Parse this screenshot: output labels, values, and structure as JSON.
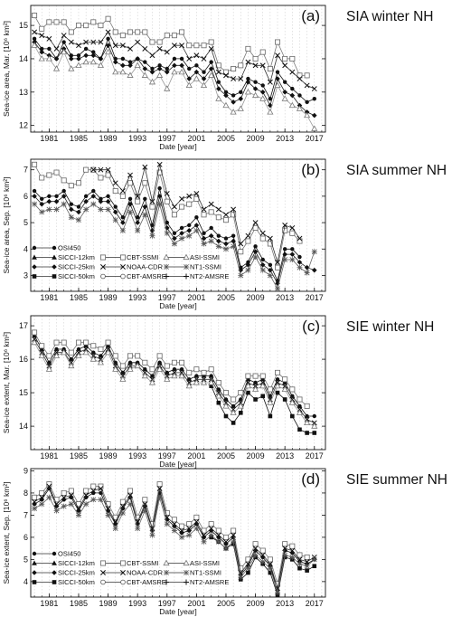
{
  "years": [
    1979,
    1980,
    1981,
    1982,
    1983,
    1984,
    1985,
    1986,
    1987,
    1988,
    1989,
    1990,
    1991,
    1992,
    1993,
    1994,
    1995,
    1996,
    1997,
    1998,
    1999,
    2000,
    2001,
    2002,
    2003,
    2004,
    2005,
    2006,
    2007,
    2008,
    2009,
    2010,
    2011,
    2012,
    2013,
    2014,
    2015,
    2016,
    2017,
    2018
  ],
  "x_ticks": [
    1981,
    1985,
    1989,
    1993,
    1997,
    2001,
    2005,
    2009,
    2013,
    2017
  ],
  "xlabel": "Date [year]",
  "legend_entries": [
    "OSI450",
    "SICCI-12km",
    "SICCI-25km",
    "SICCI-50km",
    "CBT-SSMI",
    "NOAA-CDR",
    "CBT-AMSRE",
    "ASI-SSMI",
    "NT1-SSMI",
    "NT2-AMSRE"
  ],
  "chart_data": [
    {
      "type": "line",
      "panel_label": "(a)",
      "side_title": "SIA winter NH",
      "ylabel": "Sea-ice area, Mar. [10⁶ km²]",
      "ylim": [
        11.8,
        15.6
      ],
      "yticks": [
        12,
        13,
        14,
        15
      ],
      "legend": false,
      "series": [
        {
          "name": "OSI450",
          "values": [
            14.6,
            14.3,
            14.3,
            14.0,
            14.5,
            14.1,
            14.1,
            14.3,
            14.2,
            14.0,
            14.6,
            14.0,
            14.0,
            13.9,
            14.0,
            13.9,
            13.7,
            13.8,
            13.7,
            14.0,
            14.0,
            13.7,
            13.8,
            13.6,
            13.9,
            13.3,
            13.0,
            12.9,
            13.0,
            13.4,
            13.3,
            13.2,
            12.8,
            13.6,
            13.3,
            13.1,
            12.9,
            12.7,
            12.8,
            null
          ]
        },
        {
          "name": "CBT-SSMI",
          "values": [
            15.3,
            14.9,
            15.1,
            15.1,
            15.1,
            14.8,
            15.0,
            15.0,
            15.1,
            15.0,
            15.2,
            14.8,
            14.7,
            14.8,
            14.8,
            14.8,
            14.5,
            14.5,
            14.7,
            14.7,
            14.8,
            14.4,
            14.4,
            14.4,
            14.5,
            13.8,
            13.6,
            13.7,
            13.8,
            14.3,
            14.0,
            14.2,
            13.7,
            14.5,
            14.0,
            14.0,
            13.5,
            13.5,
            null,
            null
          ]
        },
        {
          "name": "NOAA-CDR",
          "values": [
            14.8,
            14.7,
            14.6,
            14.3,
            14.7,
            14.5,
            14.4,
            14.5,
            14.5,
            14.5,
            14.8,
            14.4,
            14.4,
            14.3,
            14.5,
            14.3,
            14.1,
            14.3,
            14.2,
            14.4,
            14.4,
            14.0,
            14.1,
            14.0,
            14.3,
            13.6,
            13.5,
            13.4,
            13.4,
            13.9,
            13.8,
            13.8,
            13.3,
            14.1,
            13.8,
            13.6,
            13.4,
            13.2,
            13.1,
            null
          ]
        },
        {
          "name": "SICCI-25km",
          "values": [
            14.5,
            14.2,
            14.1,
            14.0,
            14.3,
            14.0,
            14.0,
            14.1,
            14.1,
            14.0,
            14.4,
            13.9,
            13.8,
            13.8,
            14.0,
            13.7,
            13.6,
            13.7,
            13.6,
            13.8,
            13.8,
            13.4,
            13.6,
            13.4,
            13.7,
            13.1,
            12.9,
            12.7,
            12.8,
            13.3,
            13.1,
            13.0,
            12.6,
            13.4,
            13.0,
            12.9,
            12.6,
            12.4,
            12.3,
            null
          ]
        },
        {
          "name": "ASI-SSMI",
          "values": [
            14.4,
            14.0,
            14.0,
            13.7,
            14.2,
            13.7,
            13.8,
            13.9,
            13.9,
            13.8,
            14.2,
            13.6,
            13.6,
            13.5,
            13.8,
            13.5,
            13.3,
            13.5,
            13.1,
            13.6,
            13.6,
            13.2,
            13.4,
            13.2,
            13.5,
            12.8,
            12.6,
            12.4,
            12.5,
            13.0,
            12.9,
            12.8,
            12.4,
            13.2,
            12.8,
            12.6,
            12.5,
            12.3,
            11.9,
            null
          ]
        }
      ]
    },
    {
      "type": "line",
      "panel_label": "(b)",
      "side_title": "SIA summer NH",
      "ylabel": "Sea-ice area, Sep. [10⁶ km²]",
      "ylim": [
        2.4,
        7.4
      ],
      "yticks": [
        3,
        4,
        5,
        6,
        7
      ],
      "legend": true,
      "series": [
        {
          "name": "OSI450",
          "values": [
            6.2,
            5.9,
            6.0,
            6.0,
            6.2,
            5.7,
            5.6,
            6.0,
            6.2,
            5.9,
            6.0,
            5.6,
            5.2,
            5.9,
            5.2,
            5.9,
            4.9,
            6.3,
            5.0,
            4.6,
            4.8,
            4.9,
            5.2,
            4.6,
            4.8,
            4.5,
            4.4,
            4.5,
            3.3,
            3.5,
            4.1,
            3.6,
            3.4,
            2.8,
            4.0,
            4.0,
            3.7,
            null,
            null,
            null
          ]
        },
        {
          "name": "CBT-SSMI",
          "values": [
            7.2,
            6.7,
            6.8,
            6.9,
            6.6,
            6.4,
            6.5,
            7.0,
            7.0,
            6.7,
            6.8,
            6.2,
            6.0,
            6.5,
            5.8,
            6.5,
            5.6,
            6.9,
            5.8,
            5.3,
            5.6,
            5.7,
            5.9,
            5.3,
            5.4,
            5.2,
            5.1,
            5.3,
            3.9,
            4.3,
            4.8,
            4.4,
            4.2,
            3.3,
            4.7,
            4.6,
            4.3,
            null,
            null,
            null
          ]
        },
        {
          "name": "NOAA-CDR",
          "values": [
            null,
            null,
            null,
            null,
            null,
            null,
            null,
            null,
            7.0,
            7.0,
            7.0,
            6.5,
            6.2,
            6.8,
            6.0,
            7.1,
            5.8,
            7.2,
            6.1,
            5.6,
            5.9,
            6.0,
            6.1,
            5.5,
            5.7,
            5.5,
            5.3,
            5.5,
            4.2,
            4.5,
            5.0,
            4.6,
            4.4,
            3.5,
            4.9,
            4.8,
            4.4,
            null,
            null,
            null
          ]
        },
        {
          "name": "SICCI-25km",
          "values": [
            6.0,
            5.7,
            5.8,
            5.8,
            6.0,
            5.5,
            5.4,
            5.8,
            6.0,
            5.8,
            5.8,
            5.4,
            5.0,
            5.7,
            5.0,
            5.6,
            4.7,
            6.0,
            4.8,
            4.4,
            4.6,
            4.7,
            4.9,
            4.4,
            4.5,
            4.3,
            4.2,
            4.3,
            3.2,
            3.4,
            3.9,
            3.4,
            3.2,
            2.7,
            3.8,
            3.8,
            3.5,
            3.3,
            3.2,
            null
          ]
        },
        {
          "name": "NT1-SSMI",
          "values": [
            5.7,
            5.4,
            5.5,
            5.5,
            5.7,
            5.2,
            5.1,
            5.5,
            5.7,
            5.5,
            5.5,
            5.1,
            4.7,
            5.4,
            4.7,
            5.3,
            4.5,
            5.7,
            4.6,
            4.2,
            4.4,
            4.5,
            4.7,
            4.2,
            4.3,
            4.1,
            4.0,
            4.1,
            3.0,
            3.2,
            3.7,
            3.2,
            3.0,
            2.5,
            3.6,
            3.6,
            3.3,
            3.1,
            3.9,
            null
          ]
        }
      ]
    },
    {
      "type": "line",
      "panel_label": "(c)",
      "side_title": "SIE winter NH",
      "ylabel": "Sea-ice extent, Mar. [10⁶ km²]",
      "ylim": [
        13.3,
        17.3
      ],
      "yticks": [
        14,
        15,
        16,
        17
      ],
      "legend": false,
      "series": [
        {
          "name": "OSI450",
          "values": [
            16.7,
            16.3,
            15.9,
            16.3,
            16.3,
            16.0,
            16.3,
            16.4,
            16.2,
            16.1,
            16.4,
            15.9,
            15.6,
            15.9,
            15.9,
            15.7,
            15.5,
            15.9,
            15.6,
            15.7,
            15.7,
            15.4,
            15.5,
            15.5,
            15.5,
            15.1,
            14.8,
            14.6,
            14.8,
            15.4,
            15.3,
            15.4,
            14.9,
            15.4,
            15.3,
            14.9,
            14.6,
            14.3,
            14.3,
            null
          ]
        },
        {
          "name": "CBT-SSMI",
          "values": [
            16.8,
            16.4,
            16.1,
            16.5,
            16.5,
            16.2,
            16.5,
            16.5,
            16.4,
            16.3,
            16.5,
            16.1,
            15.8,
            16.1,
            16.1,
            15.9,
            15.7,
            16.1,
            15.8,
            15.9,
            15.9,
            15.6,
            15.7,
            15.6,
            15.7,
            15.3,
            15.0,
            14.8,
            15.0,
            15.5,
            15.5,
            15.5,
            15.1,
            15.6,
            15.4,
            15.1,
            14.8,
            14.6,
            null,
            null
          ]
        },
        {
          "name": "NOAA-CDR",
          "values": [
            16.6,
            16.2,
            15.8,
            16.2,
            16.2,
            15.9,
            16.2,
            16.3,
            16.1,
            16.0,
            16.3,
            15.8,
            15.5,
            15.8,
            15.8,
            15.6,
            15.4,
            15.8,
            15.5,
            15.6,
            15.6,
            15.3,
            15.4,
            15.4,
            15.4,
            15.0,
            14.7,
            14.5,
            14.7,
            15.3,
            15.2,
            15.3,
            14.8,
            15.3,
            15.2,
            14.8,
            14.5,
            14.2,
            14.1,
            null
          ]
        },
        {
          "name": "SICCI-50km",
          "values": [
            null,
            null,
            null,
            null,
            null,
            null,
            null,
            null,
            null,
            null,
            null,
            null,
            null,
            null,
            null,
            null,
            null,
            null,
            null,
            null,
            null,
            null,
            null,
            null,
            15.2,
            14.7,
            14.3,
            14.1,
            14.4,
            15.0,
            14.8,
            14.9,
            14.3,
            15.0,
            14.8,
            14.3,
            13.9,
            13.8,
            13.8,
            null
          ]
        },
        {
          "name": "ASI-SSMI",
          "values": [
            16.5,
            16.1,
            15.7,
            16.1,
            16.2,
            15.8,
            16.1,
            16.2,
            16.0,
            15.9,
            16.2,
            15.7,
            15.4,
            15.7,
            15.8,
            15.5,
            15.3,
            15.7,
            15.4,
            15.5,
            15.5,
            15.2,
            15.3,
            15.3,
            15.3,
            14.9,
            14.6,
            14.4,
            14.6,
            15.2,
            15.1,
            15.2,
            14.7,
            15.2,
            15.1,
            14.7,
            14.4,
            14.1,
            14.0,
            null
          ]
        }
      ]
    },
    {
      "type": "line",
      "panel_label": "(d)",
      "side_title": "SIE summer NH",
      "ylabel": "Sea-ice extent, Sep. [10⁶ km²]",
      "ylim": [
        3.3,
        9.1
      ],
      "yticks": [
        4,
        5,
        6,
        7,
        8,
        9
      ],
      "legend": true,
      "series": [
        {
          "name": "OSI450",
          "values": [
            7.5,
            7.7,
            8.2,
            7.4,
            7.7,
            7.8,
            7.2,
            7.8,
            8.0,
            8.0,
            7.2,
            6.6,
            7.3,
            7.8,
            6.6,
            7.4,
            6.3,
            8.0,
            6.8,
            6.5,
            6.2,
            6.3,
            6.6,
            6.0,
            6.3,
            6.0,
            5.7,
            6.0,
            4.3,
            4.7,
            5.4,
            5.1,
            4.7,
            3.6,
            5.4,
            5.3,
            4.9,
            4.8,
            5.0,
            null
          ]
        },
        {
          "name": "CBT-SSMI",
          "values": [
            7.8,
            8.0,
            8.4,
            7.7,
            8.0,
            8.1,
            7.5,
            8.1,
            8.3,
            8.3,
            7.5,
            6.9,
            7.6,
            8.1,
            6.9,
            7.7,
            6.6,
            8.4,
            7.1,
            6.8,
            6.5,
            6.6,
            6.9,
            6.3,
            6.6,
            6.3,
            6.0,
            6.3,
            4.6,
            5.0,
            5.7,
            5.4,
            5.0,
            3.9,
            5.7,
            5.6,
            5.2,
            5.1,
            null,
            null
          ]
        },
        {
          "name": "NOAA-CDR",
          "values": [
            7.6,
            7.8,
            8.3,
            7.5,
            7.8,
            7.9,
            7.3,
            7.9,
            8.1,
            8.2,
            7.3,
            6.7,
            7.4,
            7.9,
            6.7,
            7.5,
            6.4,
            8.2,
            6.9,
            6.6,
            6.3,
            6.4,
            6.7,
            6.1,
            6.4,
            6.1,
            5.8,
            6.1,
            4.4,
            4.8,
            5.5,
            5.2,
            4.8,
            3.7,
            5.5,
            5.4,
            5.0,
            4.9,
            5.1,
            null
          ]
        },
        {
          "name": "SICCI-50km",
          "values": [
            null,
            null,
            null,
            null,
            null,
            null,
            null,
            null,
            null,
            null,
            null,
            null,
            null,
            null,
            null,
            null,
            null,
            null,
            null,
            null,
            null,
            null,
            null,
            null,
            6.0,
            5.8,
            5.5,
            5.7,
            4.1,
            4.4,
            5.1,
            4.8,
            4.4,
            3.4,
            5.1,
            5.0,
            4.6,
            4.5,
            4.7,
            null
          ]
        },
        {
          "name": "NT1-SSMI",
          "values": [
            7.3,
            7.5,
            7.8,
            7.2,
            7.4,
            7.5,
            7.0,
            7.5,
            7.7,
            7.7,
            7.0,
            6.4,
            7.1,
            7.5,
            6.4,
            7.2,
            6.1,
            7.8,
            6.6,
            6.3,
            6.0,
            6.1,
            6.4,
            5.8,
            6.1,
            5.8,
            5.5,
            5.8,
            4.2,
            4.6,
            5.2,
            4.9,
            4.6,
            3.5,
            5.2,
            5.1,
            4.8,
            4.7,
            5.0,
            null
          ]
        }
      ]
    }
  ]
}
